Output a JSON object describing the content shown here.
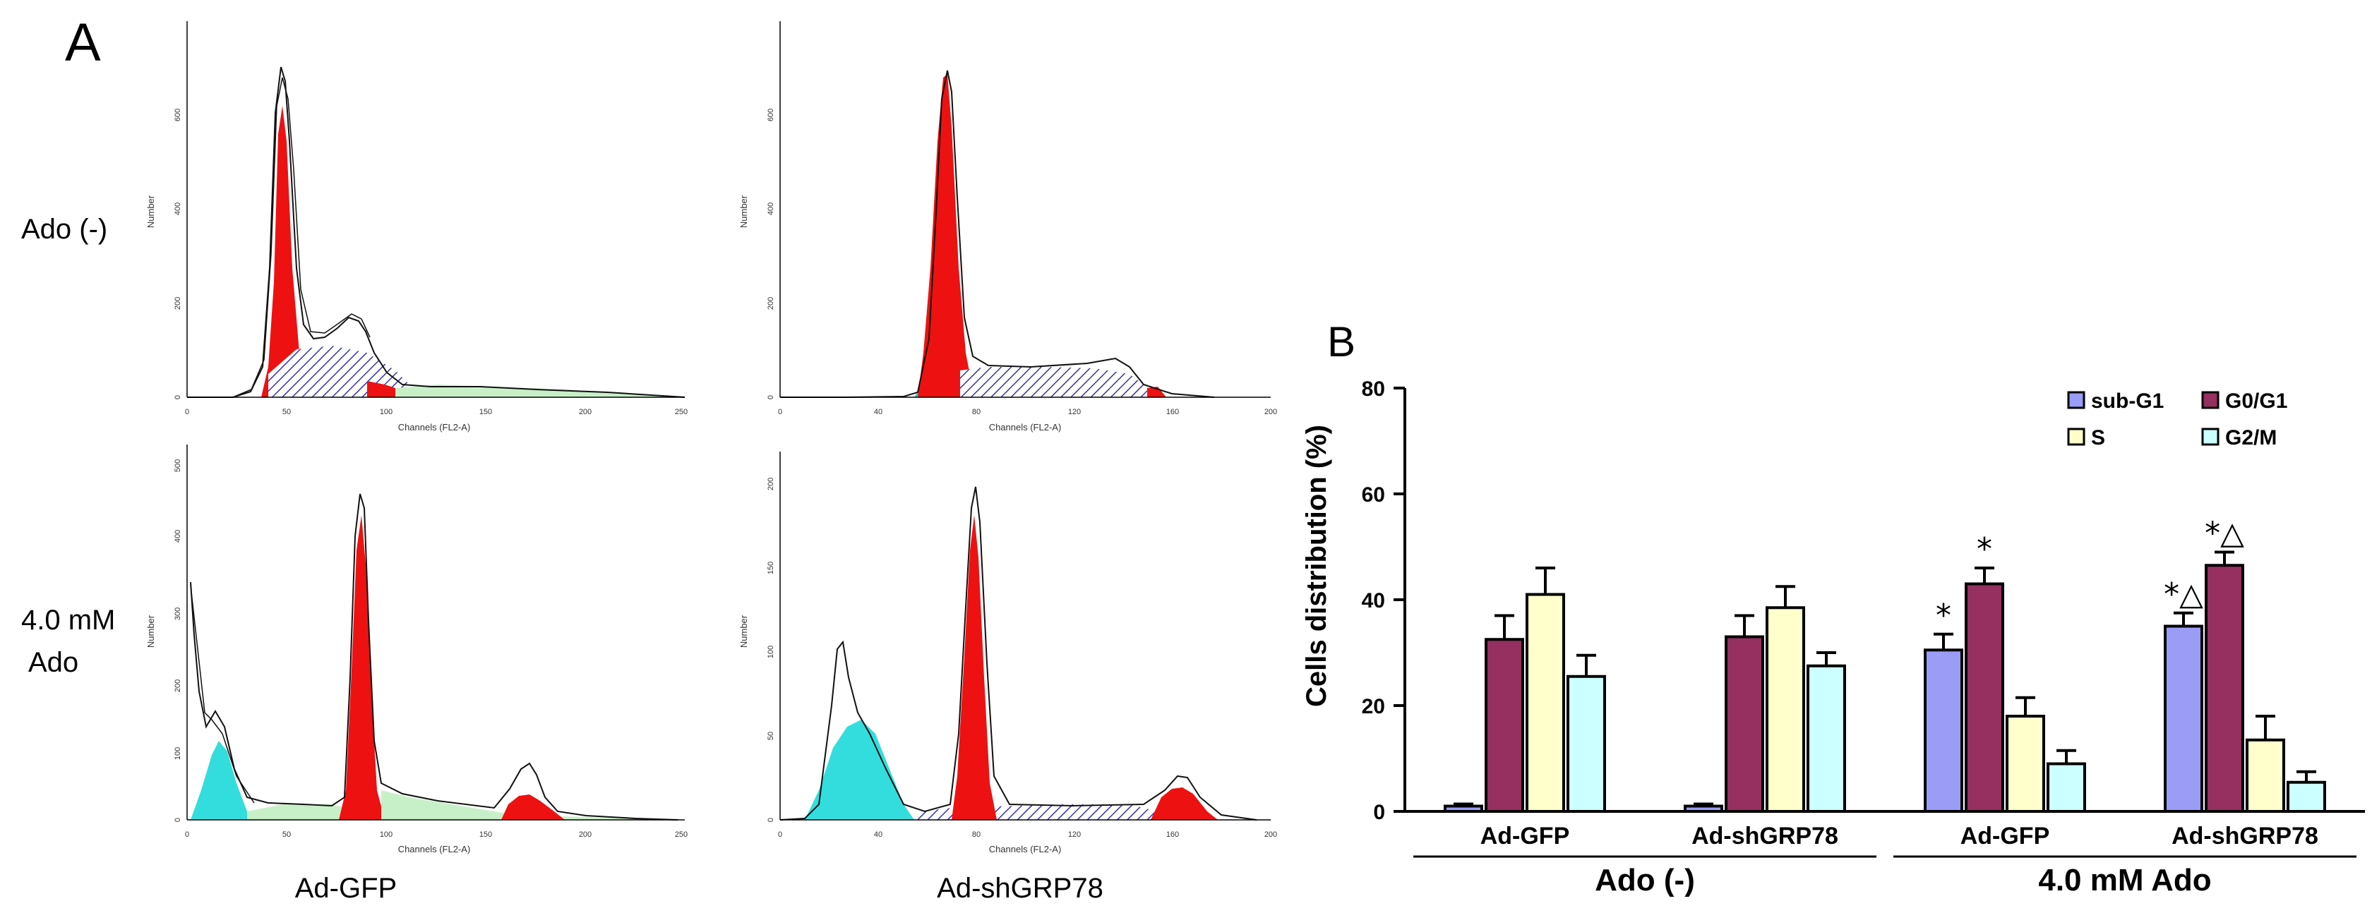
{
  "panel_a": {
    "letter": "A",
    "row_labels": {
      "top": "Ado (-)",
      "bottom_line1": "4.0 mM",
      "bottom_line2": "Ado"
    },
    "col_labels": {
      "left": "Ad-GFP",
      "right": "Ad-shGRP78"
    },
    "histogram_ylabel": "Number",
    "histogram_xlabel": "Channels (FL2-A)",
    "histograms": [
      {
        "id": "tl",
        "xticks": [
          "0",
          "50",
          "100",
          "150",
          "200",
          "250"
        ],
        "yticks": [
          "0",
          "200",
          "400",
          "600"
        ]
      },
      {
        "id": "tr",
        "xticks": [
          "0",
          "40",
          "80",
          "120",
          "160",
          "200"
        ],
        "yticks": [
          "0",
          "200",
          "400",
          "600"
        ]
      },
      {
        "id": "bl",
        "xticks": [
          "0",
          "50",
          "100",
          "150",
          "200",
          "250"
        ],
        "yticks": [
          "0",
          "100",
          "200",
          "300",
          "400",
          "500"
        ]
      },
      {
        "id": "br",
        "xticks": [
          "0",
          "40",
          "80",
          "120",
          "160",
          "200"
        ],
        "yticks": [
          "0",
          "50",
          "100",
          "150",
          "200"
        ]
      }
    ]
  },
  "chart_data": {
    "type": "bar",
    "panel_letter": "B",
    "ylabel": "Cells distribution (%)",
    "ylim": [
      0,
      80
    ],
    "yticks": [
      "0",
      "20",
      "40",
      "60",
      "80"
    ],
    "categories": [
      "Ad-GFP",
      "Ad-shGRP78",
      "Ad-GFP",
      "Ad-shGRP78"
    ],
    "groups": [
      {
        "label": "Ado (-)",
        "categories": [
          0,
          1
        ]
      },
      {
        "label": "4.0 mM Ado",
        "categories": [
          2,
          3
        ]
      }
    ],
    "legend_position": "top-right",
    "series": [
      {
        "name": "sub-G1",
        "color": "#9a9cf6",
        "values": [
          1,
          1,
          30.5,
          35
        ],
        "errors": [
          0.4,
          0.4,
          3,
          2.5
        ]
      },
      {
        "name": "G0/G1",
        "color": "#963060",
        "values": [
          32.5,
          33,
          43,
          46.5
        ],
        "errors": [
          4.5,
          4,
          3,
          2.5
        ]
      },
      {
        "name": "S",
        "color": "#ffffcc",
        "values": [
          41,
          38.5,
          18,
          13.5
        ],
        "errors": [
          5,
          4,
          3.5,
          4.5
        ]
      },
      {
        "name": "G2/M",
        "color": "#ccffff",
        "values": [
          25.5,
          27.5,
          9,
          5.5
        ],
        "errors": [
          4,
          2.5,
          2.5,
          2
        ]
      }
    ],
    "annotations": [
      {
        "category": 2,
        "series": 0,
        "text": "*"
      },
      {
        "category": 2,
        "series": 1,
        "text": "*"
      },
      {
        "category": 3,
        "series": 0,
        "text": "*△"
      },
      {
        "category": 3,
        "series": 1,
        "text": "*△"
      }
    ]
  }
}
